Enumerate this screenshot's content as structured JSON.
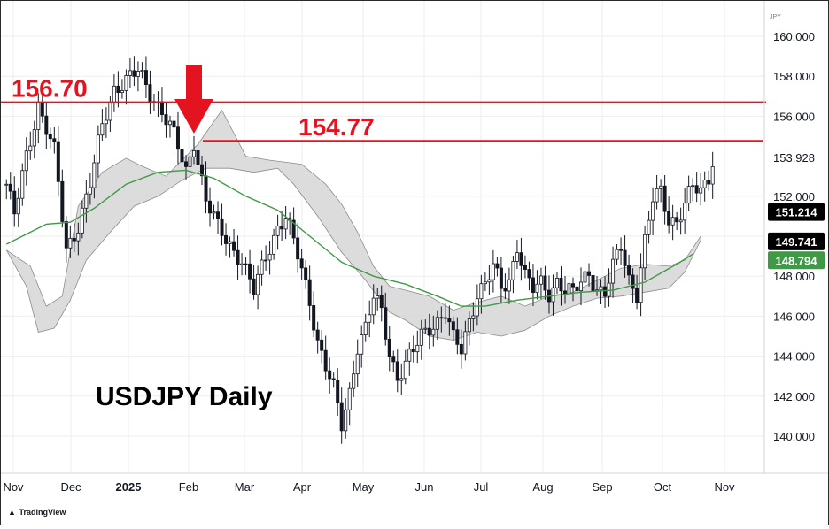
{
  "chart_data": {
    "type": "candlestick",
    "title": "USDJPY Daily",
    "symbol_label": "JPY",
    "ylim": [
      139.0,
      161.0
    ],
    "y_ticks": [
      {
        "value": 140.0,
        "label": "140.000"
      },
      {
        "value": 142.0,
        "label": "142.000"
      },
      {
        "value": 144.0,
        "label": "144.000"
      },
      {
        "value": 146.0,
        "label": "146.000"
      },
      {
        "value": 148.0,
        "label": "148.000"
      },
      {
        "value": 150.0,
        "label": "150.000"
      },
      {
        "value": 152.0,
        "label": "152.000"
      },
      {
        "value": 153.928,
        "label": "153.928"
      },
      {
        "value": 156.0,
        "label": "156.000"
      },
      {
        "value": 158.0,
        "label": "158.000"
      },
      {
        "value": 160.0,
        "label": "160.000"
      }
    ],
    "x_ticks": [
      "Nov",
      "Dec",
      "2025",
      "Feb",
      "Mar",
      "Apr",
      "May",
      "Jun",
      "Jul",
      "Aug",
      "Sep",
      "Oct",
      "Nov"
    ],
    "levels": [
      {
        "value": 156.7,
        "label": "156.70",
        "color": "#e3131f"
      },
      {
        "value": 154.77,
        "label": "154.77",
        "color": "#e3131f"
      }
    ],
    "arrow_marker": {
      "date_index": 47,
      "color": "#e3131f"
    },
    "price_labels": [
      {
        "value": 151.214,
        "label": "151.214",
        "bg": "#000000",
        "fg": "#ffffff"
      },
      {
        "value": 149.741,
        "label": "149.741",
        "bg": "#000000",
        "fg": "#ffffff"
      },
      {
        "value": 148.794,
        "label": "148.794",
        "bg": "#3e9a44",
        "fg": "#ffffff"
      }
    ],
    "close_path": [
      [
        0,
        152.6
      ],
      [
        2,
        151.0
      ],
      [
        5,
        154.0
      ],
      [
        8,
        156.6
      ],
      [
        12,
        154.2
      ],
      [
        15,
        149.3
      ],
      [
        18,
        150.6
      ],
      [
        21,
        152.6
      ],
      [
        24,
        155.5
      ],
      [
        27,
        157.4
      ],
      [
        30,
        157.8
      ],
      [
        33,
        158.2
      ],
      [
        36,
        157.2
      ],
      [
        39,
        156.3
      ],
      [
        42,
        155.0
      ],
      [
        45,
        153.2
      ],
      [
        47,
        154.8
      ],
      [
        50,
        151.8
      ],
      [
        53,
        150.4
      ],
      [
        56,
        149.6
      ],
      [
        59,
        148.8
      ],
      [
        62,
        147.2
      ],
      [
        65,
        149.0
      ],
      [
        68,
        150.5
      ],
      [
        70,
        151.0
      ],
      [
        73,
        149.0
      ],
      [
        76,
        146.8
      ],
      [
        78,
        144.8
      ],
      [
        80,
        143.5
      ],
      [
        82,
        142.3
      ],
      [
        84,
        140.5
      ],
      [
        86,
        142.2
      ],
      [
        88,
        144.6
      ],
      [
        90,
        145.4
      ],
      [
        92,
        146.9
      ],
      [
        94,
        146.2
      ],
      [
        96,
        144.2
      ],
      [
        98,
        143.0
      ],
      [
        100,
        143.6
      ],
      [
        102,
        144.2
      ],
      [
        104,
        145.0
      ],
      [
        106,
        145.5
      ],
      [
        108,
        145.8
      ],
      [
        110,
        146.2
      ],
      [
        112,
        144.8
      ],
      [
        114,
        144.3
      ],
      [
        116,
        145.8
      ],
      [
        118,
        147.2
      ],
      [
        120,
        147.6
      ],
      [
        122,
        148.4
      ],
      [
        124,
        147.4
      ],
      [
        126,
        147.8
      ],
      [
        128,
        149.6
      ],
      [
        130,
        148.0
      ],
      [
        132,
        147.3
      ],
      [
        134,
        147.6
      ],
      [
        136,
        147.2
      ],
      [
        138,
        147.8
      ],
      [
        140,
        147.3
      ],
      [
        142,
        147.1
      ],
      [
        144,
        147.7
      ],
      [
        146,
        148.2
      ],
      [
        148,
        147.4
      ],
      [
        150,
        147.1
      ],
      [
        152,
        148.4
      ],
      [
        154,
        149.5
      ],
      [
        156,
        147.9
      ],
      [
        158,
        147.2
      ],
      [
        160,
        149.7
      ],
      [
        162,
        151.8
      ],
      [
        164,
        152.2
      ],
      [
        166,
        150.9
      ],
      [
        168,
        150.8
      ],
      [
        170,
        151.6
      ],
      [
        172,
        152.4
      ],
      [
        174,
        152.2
      ],
      [
        176,
        153.0
      ],
      [
        177,
        153.9
      ]
    ],
    "moving_average": [
      [
        0,
        149.6
      ],
      [
        10,
        150.6
      ],
      [
        16,
        150.7
      ],
      [
        22,
        151.4
      ],
      [
        30,
        152.6
      ],
      [
        38,
        153.2
      ],
      [
        45,
        153.3
      ],
      [
        52,
        152.9
      ],
      [
        60,
        152.0
      ],
      [
        68,
        151.3
      ],
      [
        76,
        150.0
      ],
      [
        84,
        148.7
      ],
      [
        92,
        148.0
      ],
      [
        100,
        147.6
      ],
      [
        108,
        147.0
      ],
      [
        114,
        146.5
      ],
      [
        120,
        146.5
      ],
      [
        128,
        146.8
      ],
      [
        136,
        147.0
      ],
      [
        144,
        147.2
      ],
      [
        152,
        147.3
      ],
      [
        160,
        147.7
      ],
      [
        168,
        148.6
      ],
      [
        172,
        149.1
      ]
    ],
    "cloud_upper": [
      [
        0,
        149.3
      ],
      [
        6,
        148.5
      ],
      [
        10,
        146.5
      ],
      [
        14,
        147.0
      ],
      [
        18,
        151.5
      ],
      [
        24,
        153.2
      ],
      [
        30,
        153.9
      ],
      [
        34,
        153.5
      ],
      [
        40,
        153.0
      ],
      [
        48,
        154.6
      ],
      [
        54,
        156.3
      ],
      [
        60,
        154.0
      ],
      [
        66,
        153.8
      ],
      [
        74,
        153.6
      ],
      [
        80,
        152.6
      ],
      [
        84,
        151.6
      ],
      [
        88,
        150.2
      ],
      [
        92,
        148.5
      ],
      [
        96,
        147.5
      ],
      [
        100,
        147.3
      ],
      [
        106,
        147.0
      ],
      [
        112,
        146.3
      ],
      [
        118,
        146.7
      ],
      [
        124,
        147.0
      ],
      [
        130,
        146.5
      ],
      [
        136,
        147.0
      ],
      [
        142,
        147.2
      ],
      [
        148,
        147.8
      ],
      [
        154,
        148.4
      ],
      [
        160,
        148.6
      ],
      [
        166,
        148.5
      ],
      [
        170,
        148.8
      ],
      [
        174,
        150.0
      ]
    ],
    "cloud_lower": [
      [
        0,
        149.3
      ],
      [
        5,
        147.5
      ],
      [
        8,
        145.2
      ],
      [
        12,
        145.4
      ],
      [
        16,
        146.8
      ],
      [
        20,
        148.8
      ],
      [
        26,
        150.2
      ],
      [
        32,
        151.5
      ],
      [
        38,
        152.0
      ],
      [
        44,
        152.8
      ],
      [
        50,
        153.4
      ],
      [
        56,
        153.4
      ],
      [
        62,
        153.2
      ],
      [
        68,
        153.4
      ],
      [
        72,
        152.6
      ],
      [
        78,
        151.0
      ],
      [
        84,
        149.2
      ],
      [
        90,
        147.8
      ],
      [
        96,
        146.2
      ],
      [
        100,
        145.8
      ],
      [
        106,
        145.0
      ],
      [
        112,
        144.8
      ],
      [
        118,
        145.2
      ],
      [
        124,
        145.0
      ],
      [
        130,
        145.3
      ],
      [
        136,
        146.0
      ],
      [
        142,
        146.5
      ],
      [
        148,
        146.9
      ],
      [
        154,
        147.0
      ],
      [
        160,
        147.2
      ],
      [
        166,
        147.4
      ],
      [
        170,
        148.2
      ],
      [
        174,
        149.8
      ]
    ],
    "colors": {
      "candle": "#131722",
      "moving_average": "#3e9a44",
      "cloud_fill": "#d6d6d6",
      "cloud_edge": "#8c8c8c",
      "grid": "#eceef2"
    },
    "grid": true
  },
  "footer": {
    "brand_label": "TradingView"
  }
}
